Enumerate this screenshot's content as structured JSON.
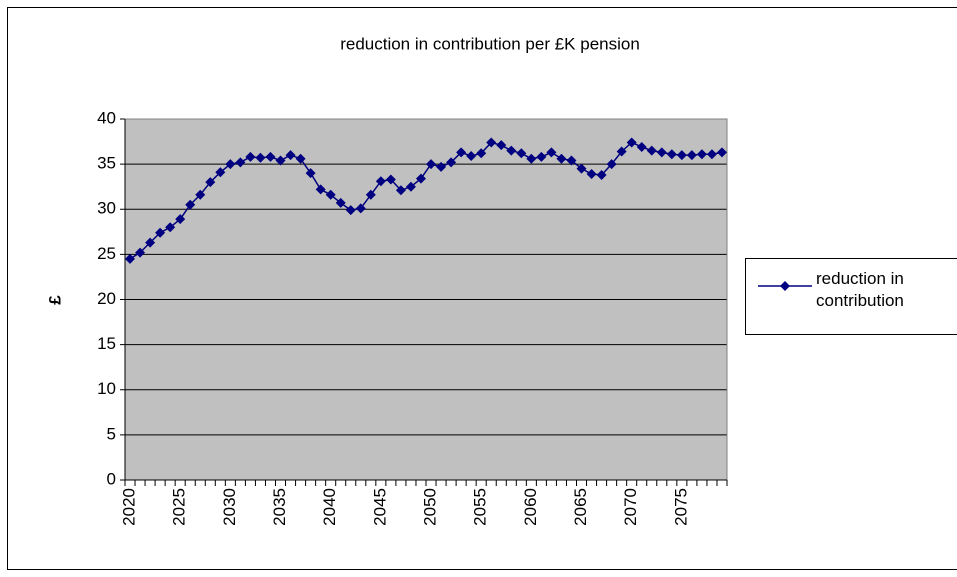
{
  "chart_data": {
    "type": "line",
    "title": "reduction in contribution per £K pension",
    "y_label": "£",
    "categories": [
      "2020",
      null,
      null,
      null,
      null,
      "2025",
      null,
      null,
      null,
      null,
      "2030",
      null,
      null,
      null,
      null,
      "2035",
      null,
      null,
      null,
      null,
      "2040",
      null,
      null,
      null,
      null,
      "2045",
      null,
      null,
      null,
      null,
      "2050",
      null,
      null,
      null,
      null,
      "2055",
      null,
      null,
      null,
      null,
      "2060",
      null,
      null,
      null,
      null,
      "2065",
      null,
      null,
      null,
      null,
      "2070",
      null,
      null,
      null,
      null,
      "2075",
      null,
      null,
      null,
      null
    ],
    "series": [
      {
        "name": "reduction in contribution",
        "color": "#000080",
        "values": [
          24.5,
          25.2,
          26.3,
          27.4,
          28.0,
          28.9,
          30.5,
          31.6,
          33.0,
          34.1,
          35.0,
          35.2,
          35.8,
          35.7,
          35.8,
          35.4,
          36.0,
          35.6,
          34.0,
          32.2,
          31.6,
          30.7,
          29.9,
          30.1,
          31.6,
          33.1,
          33.3,
          32.1,
          32.5,
          33.4,
          35.0,
          34.7,
          35.2,
          36.3,
          35.9,
          36.2,
          37.4,
          37.1,
          36.5,
          36.2,
          35.6,
          35.8,
          36.3,
          35.6,
          35.4,
          34.5,
          33.9,
          33.8,
          35.0,
          36.4,
          37.4,
          36.9,
          36.5,
          36.3,
          36.1,
          36.0,
          36.0,
          36.1,
          36.1,
          36.3
        ]
      }
    ],
    "ylim": [
      0,
      40
    ],
    "yticks": [
      0,
      5,
      10,
      15,
      20,
      25,
      30,
      35,
      40
    ],
    "grid": true,
    "plot_background": "#c0c0c0",
    "legend": "right"
  }
}
